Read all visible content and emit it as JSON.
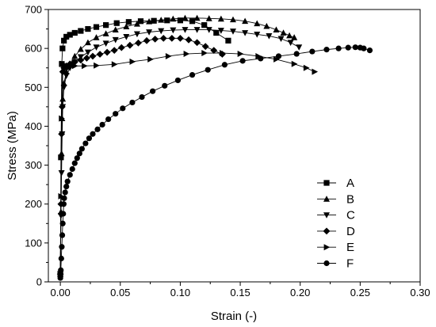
{
  "chart_data": {
    "type": "line",
    "title": "",
    "xlabel": "Strain (-)",
    "ylabel": "Stress (MPa)",
    "xlim": [
      -0.01,
      0.3
    ],
    "ylim": [
      0,
      700
    ],
    "xticks": [
      "0.00",
      "0.05",
      "0.10",
      "0.15",
      "0.20",
      "0.25",
      "0.30"
    ],
    "yticks": [
      "0",
      "100",
      "200",
      "300",
      "400",
      "500",
      "600",
      "700"
    ],
    "grid": false,
    "legend_position": "right",
    "series": [
      {
        "name": "A",
        "marker": "square",
        "x": [
          0,
          0.0005,
          0.0012,
          0.0018,
          0.003,
          0.005,
          0.008,
          0.012,
          0.017,
          0.023,
          0.03,
          0.038,
          0.047,
          0.057,
          0.067,
          0.078,
          0.089,
          0.1,
          0.11,
          0.12,
          0.13,
          0.14
        ],
        "y": [
          20,
          320,
          560,
          600,
          620,
          630,
          635,
          640,
          645,
          650,
          655,
          660,
          665,
          668,
          670,
          671,
          672,
          672,
          670,
          660,
          640,
          620
        ]
      },
      {
        "name": "B",
        "marker": "triangle-up",
        "x": [
          0,
          0.0005,
          0.001,
          0.0015,
          0.002,
          0.003,
          0.005,
          0.008,
          0.012,
          0.017,
          0.023,
          0.03,
          0.038,
          0.046,
          0.055,
          0.064,
          0.074,
          0.084,
          0.094,
          0.104,
          0.114,
          0.124,
          0.134,
          0.144,
          0.154,
          0.164,
          0.172,
          0.18,
          0.186,
          0.191,
          0.195
        ],
        "y": [
          20,
          180,
          330,
          420,
          470,
          510,
          540,
          560,
          580,
          598,
          615,
          628,
          638,
          648,
          656,
          663,
          669,
          673,
          676,
          678,
          678,
          677,
          676,
          674,
          670,
          664,
          657,
          648,
          640,
          633,
          628
        ]
      },
      {
        "name": "C",
        "marker": "triangle-down",
        "x": [
          0,
          0.0005,
          0.001,
          0.0015,
          0.002,
          0.003,
          0.005,
          0.008,
          0.012,
          0.017,
          0.023,
          0.03,
          0.038,
          0.046,
          0.055,
          0.064,
          0.074,
          0.084,
          0.094,
          0.104,
          0.114,
          0.124,
          0.134,
          0.144,
          0.154,
          0.164,
          0.174,
          0.184,
          0.192,
          0.199
        ],
        "y": [
          20,
          170,
          280,
          380,
          450,
          500,
          530,
          550,
          565,
          578,
          590,
          603,
          613,
          622,
          630,
          637,
          642,
          645,
          647,
          648,
          648,
          648,
          646,
          644,
          640,
          636,
          632,
          625,
          615,
          603
        ]
      },
      {
        "name": "D",
        "marker": "diamond",
        "x": [
          0,
          0.0005,
          0.001,
          0.0015,
          0.002,
          0.003,
          0.005,
          0.008,
          0.012,
          0.017,
          0.022,
          0.027,
          0.033,
          0.039,
          0.045,
          0.051,
          0.058,
          0.065,
          0.072,
          0.079,
          0.086,
          0.093,
          0.1,
          0.107,
          0.114,
          0.121,
          0.128,
          0.135
        ],
        "y": [
          20,
          200,
          380,
          450,
          540,
          550,
          555,
          560,
          565,
          570,
          575,
          580,
          585,
          590,
          595,
          602,
          608,
          614,
          620,
          624,
          626,
          626,
          626,
          622,
          615,
          605,
          595,
          585
        ]
      },
      {
        "name": "E",
        "marker": "triangle-right",
        "x": [
          0,
          0.0005,
          0.001,
          0.0015,
          0.002,
          0.003,
          0.005,
          0.008,
          0.012,
          0.02,
          0.03,
          0.045,
          0.06,
          0.075,
          0.09,
          0.105,
          0.12,
          0.135,
          0.15,
          0.165,
          0.18,
          0.195,
          0.205,
          0.212
        ],
        "y": [
          20,
          220,
          420,
          560,
          560,
          555,
          550,
          552,
          555,
          555,
          556,
          559,
          566,
          572,
          580,
          586,
          588,
          588,
          586,
          580,
          572,
          560,
          550,
          540
        ]
      },
      {
        "name": "F",
        "marker": "circle",
        "x": [
          0,
          0.0004,
          0.0008,
          0.0012,
          0.0016,
          0.002,
          0.0024,
          0.0028,
          0.0032,
          0.004,
          0.005,
          0.006,
          0.008,
          0.01,
          0.012,
          0.014,
          0.016,
          0.018,
          0.021,
          0.024,
          0.027,
          0.031,
          0.035,
          0.04,
          0.046,
          0.052,
          0.06,
          0.068,
          0.077,
          0.087,
          0.098,
          0.11,
          0.123,
          0.137,
          0.152,
          0.167,
          0.182,
          0.197,
          0.21,
          0.222,
          0.232,
          0.24,
          0.246,
          0.25,
          0.253,
          0.258
        ],
        "y": [
          10,
          30,
          60,
          90,
          120,
          150,
          175,
          200,
          215,
          230,
          245,
          258,
          275,
          290,
          305,
          318,
          330,
          342,
          356,
          369,
          380,
          392,
          404,
          418,
          432,
          446,
          461,
          475,
          490,
          504,
          518,
          532,
          545,
          558,
          568,
          574,
          580,
          586,
          592,
          597,
          600,
          602,
          603,
          602,
          600,
          595
        ]
      }
    ]
  }
}
